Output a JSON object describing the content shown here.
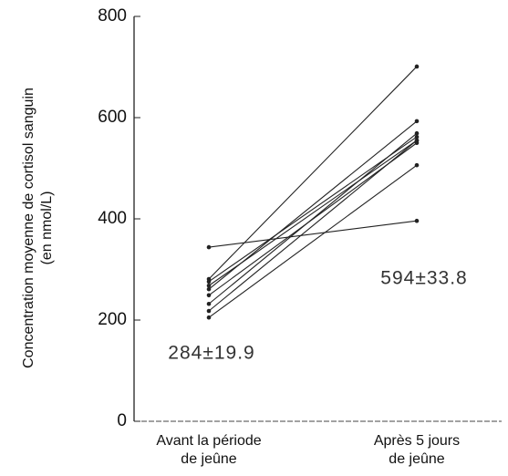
{
  "chart_data": {
    "type": "line",
    "ylabel": [
      "Concentration moyenne de cortisol sanguin",
      "(en nmol/L)"
    ],
    "categories": [
      "Avant la période\nde jeûne",
      "Après 5 jours\nde jeûne"
    ],
    "ylim": [
      0,
      800
    ],
    "yticks": [
      0,
      200,
      400,
      600,
      800
    ],
    "color": "#222",
    "series": [
      {
        "values": [
          344,
          396
        ]
      },
      {
        "values": [
          281,
          701
        ]
      },
      {
        "values": [
          276,
          562
        ]
      },
      {
        "values": [
          268,
          555
        ]
      },
      {
        "values": [
          261,
          593
        ]
      },
      {
        "values": [
          249,
          550
        ]
      },
      {
        "values": [
          232,
          569
        ]
      },
      {
        "values": [
          218,
          555
        ]
      },
      {
        "values": [
          205,
          506
        ]
      }
    ],
    "annotations": [
      "284±19.9",
      "594±33.8"
    ]
  }
}
